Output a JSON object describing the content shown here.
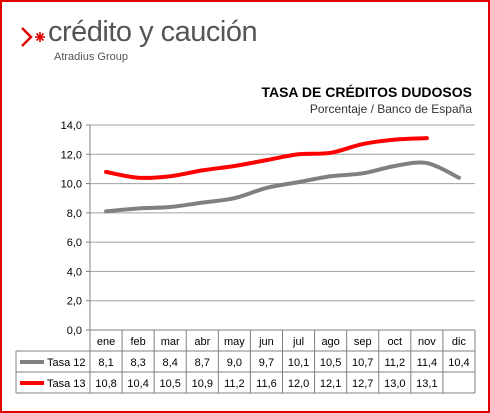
{
  "brand": {
    "name": "crédito y caución",
    "group": "Atradius Group"
  },
  "colors": {
    "frame": "#e00000",
    "tasa12": "#808080",
    "tasa13": "#ff0000",
    "brand_mark": "#e00000",
    "brand_text": "#555555"
  },
  "chart_data": {
    "type": "line",
    "title": "TASA DE CRÉDITOS DUDOSOS",
    "subtitle": "Porcentaje / Banco de España",
    "categories": [
      "ene",
      "feb",
      "mar",
      "abr",
      "may",
      "jun",
      "jul",
      "ago",
      "sep",
      "oct",
      "nov",
      "dic"
    ],
    "ylim": [
      0,
      14
    ],
    "yticks": [
      "0,0",
      "2,0",
      "4,0",
      "6,0",
      "8,0",
      "10,0",
      "12,0",
      "14,0"
    ],
    "grid": true,
    "legend": "data-table-below",
    "series": [
      {
        "name": "Tasa 12",
        "color": "#808080",
        "values": [
          8.1,
          8.3,
          8.4,
          8.7,
          9.0,
          9.7,
          10.1,
          10.5,
          10.7,
          11.2,
          11.4,
          10.4
        ],
        "labels": [
          "8,1",
          "8,3",
          "8,4",
          "8,7",
          "9,0",
          "9,7",
          "10,1",
          "10,5",
          "10,7",
          "11,2",
          "11,4",
          "10,4"
        ]
      },
      {
        "name": "Tasa 13",
        "color": "#ff0000",
        "values": [
          10.8,
          10.4,
          10.5,
          10.9,
          11.2,
          11.6,
          12.0,
          12.1,
          12.7,
          13.0,
          13.1,
          null
        ],
        "labels": [
          "10,8",
          "10,4",
          "10,5",
          "10,9",
          "11,2",
          "11,6",
          "12,0",
          "12,1",
          "12,7",
          "13,0",
          "13,1",
          ""
        ]
      }
    ]
  }
}
